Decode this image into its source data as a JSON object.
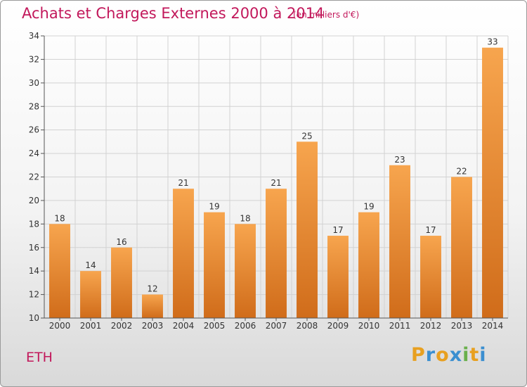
{
  "header": {
    "title": "Achats et Charges Externes 2000 à 2014",
    "subtitle": "(en milliers d'€)"
  },
  "footer": {
    "commune": "ETH",
    "brand_letters": [
      "P",
      "r",
      "o",
      "x",
      "i",
      "t",
      "i"
    ],
    "brand_colors": [
      "#e8a020",
      "#3b8fd0",
      "#e8a020",
      "#3b8fd0",
      "#6ab04c",
      "#e8a020",
      "#3b8fd0"
    ]
  },
  "colors": {
    "bar_top": "#f7a54e",
    "bar_bottom": "#d06c1a",
    "title": "#c2185b"
  },
  "chart_data": {
    "type": "bar",
    "categories": [
      "2000",
      "2001",
      "2002",
      "2003",
      "2004",
      "2005",
      "2006",
      "2007",
      "2008",
      "2009",
      "2010",
      "2011",
      "2012",
      "2013",
      "2014"
    ],
    "values": [
      18,
      14,
      16,
      12,
      21,
      19,
      18,
      21,
      25,
      17,
      19,
      23,
      17,
      22,
      33
    ],
    "ylim": [
      10,
      34
    ],
    "yticks": [
      10,
      12,
      14,
      16,
      18,
      20,
      22,
      24,
      26,
      28,
      30,
      32,
      34
    ],
    "grid": true,
    "legend": "none"
  }
}
